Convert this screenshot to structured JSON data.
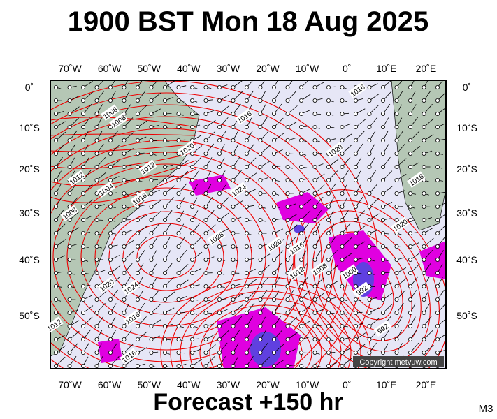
{
  "title": "1900 BST Mon 18 Aug 2025",
  "footer": "Forecast +150 hr",
  "model": "M3",
  "copyright": "Copyright metvuw.com",
  "lon_labels": [
    "70˚W",
    "60˚W",
    "50˚W",
    "40˚W",
    "30˚W",
    "20˚W",
    "10˚W",
    "0˚",
    "10˚E",
    "20˚E"
  ],
  "lat_labels": [
    "0˚",
    "10˚S",
    "20˚S",
    "30˚S",
    "40˚S",
    "50˚S"
  ],
  "isobar_labels": [
    "1016",
    "1008",
    "1008",
    "1016",
    "1020",
    "1020",
    "1012",
    "1004",
    "1012",
    "1016",
    "1024",
    "1008",
    "1016",
    "1020",
    "1028",
    "1020",
    "1016",
    "1012",
    "1008",
    "1000",
    "992",
    "1020",
    "1024",
    "1016",
    "992",
    "1012",
    "1016"
  ]
}
